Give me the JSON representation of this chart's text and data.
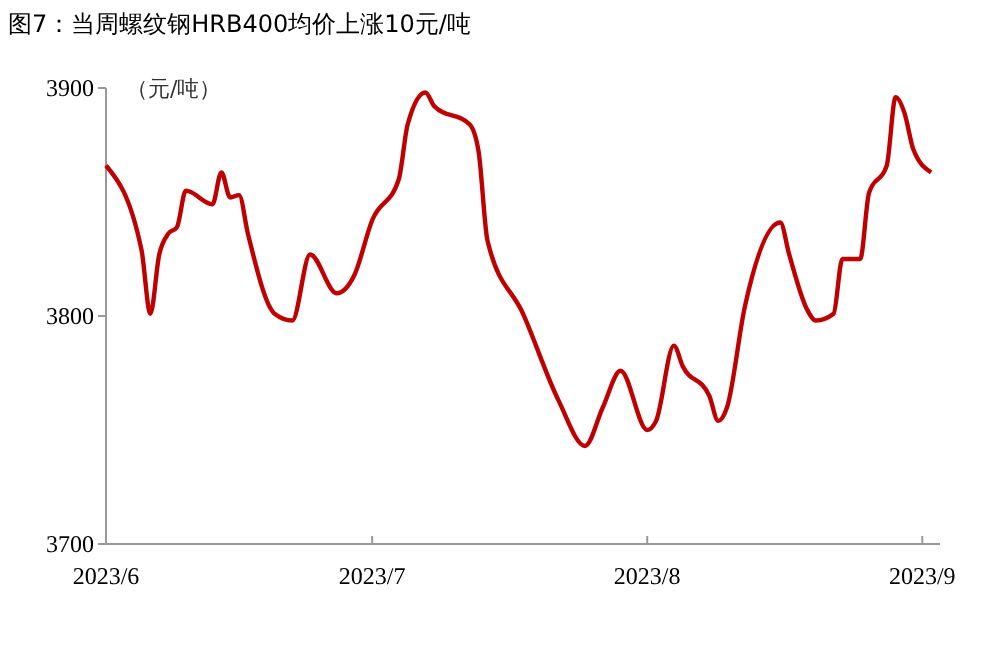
{
  "chart_data": {
    "type": "line",
    "title": "图7：当周螺纹钢HRB400均价上涨10元/吨",
    "ylabel": "（元/吨）",
    "x": [
      "2023-06-01",
      "2023-06-05",
      "2023-06-06",
      "2023-06-07",
      "2023-06-08",
      "2023-06-09",
      "2023-06-10",
      "2023-06-13",
      "2023-06-14",
      "2023-06-15",
      "2023-06-16",
      "2023-06-17",
      "2023-06-20",
      "2023-06-22",
      "2023-06-24",
      "2023-06-27",
      "2023-06-29",
      "2023-07-01",
      "2023-07-04",
      "2023-07-05",
      "2023-07-07",
      "2023-07-08",
      "2023-07-12",
      "2023-07-13",
      "2023-07-14",
      "2023-07-18",
      "2023-07-22",
      "2023-07-25",
      "2023-07-27",
      "2023-07-29",
      "2023-08-01",
      "2023-08-02",
      "2023-08-04",
      "2023-08-05",
      "2023-08-08",
      "2023-08-09",
      "2023-08-10",
      "2023-08-12",
      "2023-08-16",
      "2023-08-17",
      "2023-08-19",
      "2023-08-20",
      "2023-08-22",
      "2023-08-23",
      "2023-08-25",
      "2023-08-26",
      "2023-08-28",
      "2023-08-29",
      "2023-08-30",
      "2023-08-31",
      "2023-09-02"
    ],
    "series": [
      {
        "color": "#c00000",
        "values": [
          3866,
          3829,
          3801,
          3827,
          3836,
          3839,
          3855,
          3849,
          3863,
          3852,
          3853,
          3836,
          3801,
          3798,
          3827,
          3810,
          3818,
          3842,
          3860,
          3884,
          3898,
          3892,
          3884,
          3872,
          3833,
          3801,
          3763,
          3743,
          3760,
          3776,
          3750,
          3754,
          3787,
          3778,
          3765,
          3754,
          3760,
          3804,
          3841,
          3827,
          3803,
          3798,
          3801,
          3825,
          3825,
          3854,
          3866,
          3896,
          3889,
          3873,
          3863
        ]
      }
    ],
    "xlim": [
      "2023-06-01",
      "2023-09-03"
    ],
    "xticks": [
      {
        "value": "2023-06-01",
        "label": "2023/6"
      },
      {
        "value": "2023-07-01",
        "label": "2023/7"
      },
      {
        "value": "2023-08-01",
        "label": "2023/8"
      },
      {
        "value": "2023-09-01",
        "label": "2023/9"
      }
    ],
    "ylim": [
      3700,
      3900
    ],
    "yticks": [
      3700,
      3800,
      3900
    ]
  }
}
